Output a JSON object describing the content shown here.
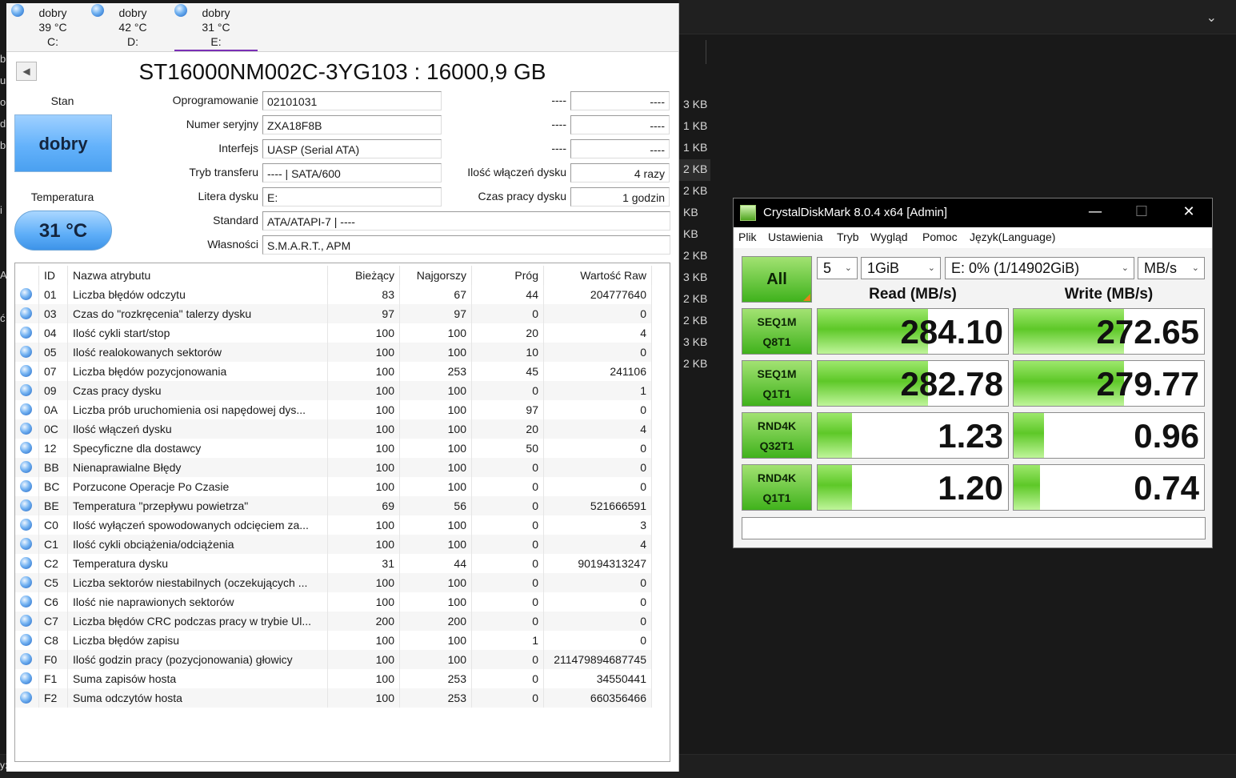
{
  "background": {
    "sizes": [
      "3 KB",
      "1 KB",
      "1 KB",
      "2 KB",
      "2 KB",
      "KB",
      "KB",
      "2 KB",
      "3 KB",
      "2 KB",
      "2 KB",
      "3 KB",
      "2 KB"
    ],
    "left_letters": [
      "b",
      "u",
      "o",
      "d",
      "b",
      "",
      "",
      "i",
      "",
      "",
      "A",
      "",
      "ć"
    ],
    "bottom_left": "y:"
  },
  "cdi": {
    "drives": [
      {
        "status": "dobry",
        "temp": "39 °C",
        "letter": "C:"
      },
      {
        "status": "dobry",
        "temp": "42 °C",
        "letter": "D:"
      },
      {
        "status": "dobry",
        "temp": "31 °C",
        "letter": "E:"
      }
    ],
    "title": "ST16000NM002C-3YG103 : 16000,9 GB",
    "stan_label": "Stan",
    "health": "dobry",
    "temp_label": "Temperatura",
    "temp": "31 °C",
    "info": {
      "firmware_label": "Oprogramowanie",
      "firmware": "02101031",
      "serial_label": "Numer seryjny",
      "serial": "ZXA18F8B",
      "interface_label": "Interfejs",
      "interface": "UASP (Serial ATA)",
      "transfer_label": "Tryb transferu",
      "transfer": "---- | SATA/600",
      "letter_label": "Litera dysku",
      "letter": "E:",
      "standard_label": "Standard",
      "standard": "ATA/ATAPI-7 | ----",
      "features_label": "Własności",
      "features": "S.M.A.R.T., APM",
      "r1_label": "----",
      "r1_value": "----",
      "r2_label": "----",
      "r2_value": "----",
      "r3_label": "----",
      "r3_value": "----",
      "power_on_count_label": "Ilość włączeń dysku",
      "power_on_count": "4 razy",
      "power_on_hours_label": "Czas pracy dysku",
      "power_on_hours": "1 godzin"
    },
    "smart_headers": {
      "id": "ID",
      "name": "Nazwa atrybutu",
      "current": "Bieżący",
      "worst": "Najgorszy",
      "threshold": "Próg",
      "raw": "Wartość Raw"
    },
    "smart_rows": [
      {
        "id": "01",
        "name": "Liczba błędów odczytu",
        "current": "83",
        "worst": "67",
        "threshold": "44",
        "raw": "204777640"
      },
      {
        "id": "03",
        "name": "Czas do \"rozkręcenia\" talerzy dysku",
        "current": "97",
        "worst": "97",
        "threshold": "0",
        "raw": "0"
      },
      {
        "id": "04",
        "name": "Ilość cykli start/stop",
        "current": "100",
        "worst": "100",
        "threshold": "20",
        "raw": "4"
      },
      {
        "id": "05",
        "name": "Ilość realokowanych sektorów",
        "current": "100",
        "worst": "100",
        "threshold": "10",
        "raw": "0"
      },
      {
        "id": "07",
        "name": "Liczba błędów pozycjonowania",
        "current": "100",
        "worst": "253",
        "threshold": "45",
        "raw": "241106"
      },
      {
        "id": "09",
        "name": "Czas pracy dysku",
        "current": "100",
        "worst": "100",
        "threshold": "0",
        "raw": "1"
      },
      {
        "id": "0A",
        "name": "Liczba prób uruchomienia osi napędowej dys...",
        "current": "100",
        "worst": "100",
        "threshold": "97",
        "raw": "0"
      },
      {
        "id": "0C",
        "name": "Ilość włączeń dysku",
        "current": "100",
        "worst": "100",
        "threshold": "20",
        "raw": "4"
      },
      {
        "id": "12",
        "name": "Specyficzne dla dostawcy",
        "current": "100",
        "worst": "100",
        "threshold": "50",
        "raw": "0"
      },
      {
        "id": "BB",
        "name": "Nienaprawialne Błędy",
        "current": "100",
        "worst": "100",
        "threshold": "0",
        "raw": "0"
      },
      {
        "id": "BC",
        "name": "Porzucone Operacje Po Czasie",
        "current": "100",
        "worst": "100",
        "threshold": "0",
        "raw": "0"
      },
      {
        "id": "BE",
        "name": "Temperatura \"przepływu powietrza\"",
        "current": "69",
        "worst": "56",
        "threshold": "0",
        "raw": "521666591"
      },
      {
        "id": "C0",
        "name": "Ilość wyłączeń spowodowanych odcięciem za...",
        "current": "100",
        "worst": "100",
        "threshold": "0",
        "raw": "3"
      },
      {
        "id": "C1",
        "name": "Ilość cykli obciążenia/odciążenia",
        "current": "100",
        "worst": "100",
        "threshold": "0",
        "raw": "4"
      },
      {
        "id": "C2",
        "name": "Temperatura dysku",
        "current": "31",
        "worst": "44",
        "threshold": "0",
        "raw": "90194313247"
      },
      {
        "id": "C5",
        "name": "Liczba sektorów niestabilnych (oczekujących ...",
        "current": "100",
        "worst": "100",
        "threshold": "0",
        "raw": "0"
      },
      {
        "id": "C6",
        "name": "Ilość nie naprawionych sektorów",
        "current": "100",
        "worst": "100",
        "threshold": "0",
        "raw": "0"
      },
      {
        "id": "C7",
        "name": "Liczba błędów CRC podczas pracy w trybie Ul...",
        "current": "200",
        "worst": "200",
        "threshold": "0",
        "raw": "0"
      },
      {
        "id": "C8",
        "name": "Liczba błędów zapisu",
        "current": "100",
        "worst": "100",
        "threshold": "1",
        "raw": "0"
      },
      {
        "id": "F0",
        "name": "Ilość godzin pracy (pozycjonowania) głowicy",
        "current": "100",
        "worst": "100",
        "threshold": "0",
        "raw": "211479894687745"
      },
      {
        "id": "F1",
        "name": "Suma zapisów hosta",
        "current": "100",
        "worst": "253",
        "threshold": "0",
        "raw": "34550441"
      },
      {
        "id": "F2",
        "name": "Suma odczytów hosta",
        "current": "100",
        "worst": "253",
        "threshold": "0",
        "raw": "660356466"
      }
    ]
  },
  "cdm": {
    "title": "CrystalDiskMark 8.0.4 x64 [Admin]",
    "menu": [
      "Plik",
      "Ustawienia",
      "Tryb",
      "Wygląd",
      "Pomoc",
      "Język(Language)"
    ],
    "all_label": "All",
    "count": "5",
    "size": "1GiB",
    "drive": "E: 0% (1/14902GiB)",
    "unit": "MB/s",
    "read_header": "Read (MB/s)",
    "write_header": "Write (MB/s)",
    "tests": [
      {
        "line1": "SEQ1M",
        "line2": "Q8T1",
        "read": "284.10",
        "write": "272.65",
        "read_level": 0.58,
        "write_level": 0.58
      },
      {
        "line1": "SEQ1M",
        "line2": "Q1T1",
        "read": "282.78",
        "write": "279.77",
        "read_level": 0.58,
        "write_level": 0.58
      },
      {
        "line1": "RND4K",
        "line2": "Q32T1",
        "read": "1.23",
        "write": "0.96",
        "read_level": 0.18,
        "write_level": 0.16
      },
      {
        "line1": "RND4K",
        "line2": "Q1T1",
        "read": "1.20",
        "write": "0.74",
        "read_level": 0.18,
        "write_level": 0.14
      }
    ],
    "accent": "#40b21c"
  }
}
